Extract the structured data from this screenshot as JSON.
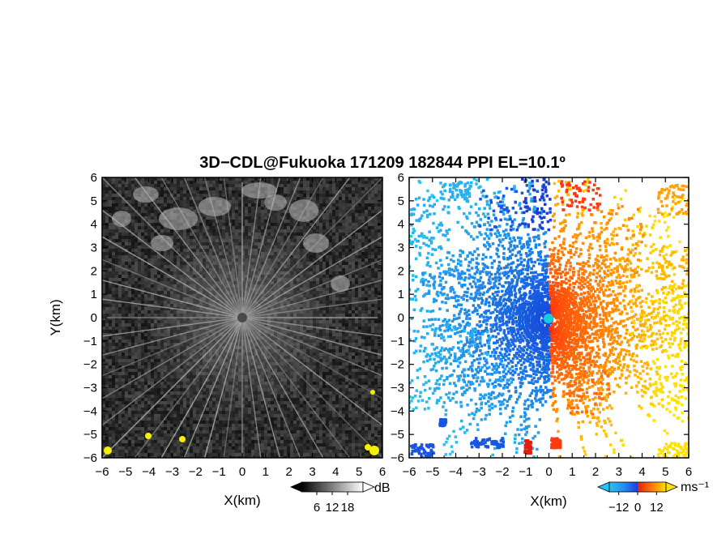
{
  "chart_data": {
    "title": "3D−CDL@Fukuoka 171209 182844 PPI EL=10.1º",
    "panels": [
      {
        "type": "heatmap",
        "name": "backscatter",
        "xlabel": "X(km)",
        "ylabel": "Y(km)",
        "xlim": [
          -6,
          6
        ],
        "ylim": [
          -6,
          6
        ],
        "xticks": [
          -6,
          -5,
          -4,
          -3,
          -2,
          -1,
          0,
          1,
          2,
          3,
          4,
          5,
          6
        ],
        "yticks": [
          -6,
          -5,
          -4,
          -3,
          -2,
          -1,
          0,
          1,
          2,
          3,
          4,
          5,
          6
        ],
        "xtick_labels": [
          "−6",
          "−5",
          "−4",
          "−3",
          "−2",
          "−1",
          "0",
          "1",
          "2",
          "3",
          "4",
          "5",
          "6"
        ],
        "ytick_labels": [
          "−6",
          "−5",
          "−4",
          "−3",
          "−2",
          "−1",
          "0",
          "1",
          "2",
          "3",
          "4",
          "5",
          "6"
        ],
        "colorbar": {
          "unit": "dB",
          "ticks": [
            6,
            12,
            18
          ],
          "tick_labels": [
            "6",
            "12",
            "18"
          ],
          "range": [
            0,
            24
          ],
          "colormap": "grayscale"
        }
      },
      {
        "type": "heatmap",
        "name": "doppler-velocity",
        "xlabel": "X(km)",
        "ylabel": "",
        "xlim": [
          -6,
          6
        ],
        "ylim": [
          -6,
          6
        ],
        "xticks": [
          -6,
          -5,
          -4,
          -3,
          -2,
          -1,
          0,
          1,
          2,
          3,
          4,
          5,
          6
        ],
        "yticks": [
          -6,
          -5,
          -4,
          -3,
          -2,
          -1,
          0,
          1,
          2,
          3,
          4,
          5,
          6
        ],
        "xtick_labels": [
          "−6",
          "−5",
          "−4",
          "−3",
          "−2",
          "−1",
          "0",
          "1",
          "2",
          "3",
          "4",
          "5",
          "6"
        ],
        "ytick_labels": [
          "−6",
          "−5",
          "−4",
          "−3",
          "−2",
          "−1",
          "0",
          "1",
          "2",
          "3",
          "4",
          "5",
          "6"
        ],
        "colorbar": {
          "unit": "ms⁻¹",
          "ticks": [
            -12,
            0,
            12
          ],
          "tick_labels": [
            "−12",
            "0",
            "12"
          ],
          "range": [
            -18,
            18
          ],
          "colormap": "blue-cyan-red-yellow"
        }
      }
    ]
  },
  "colors": {
    "background": "#ffffff",
    "scan_background": "#2a2a2a",
    "approaching": "#1a4fe0",
    "receding": "#ff5a00",
    "far_receding": "#ffe000",
    "far_approaching": "#29c2f2",
    "center_marker": "#10d0e0"
  }
}
